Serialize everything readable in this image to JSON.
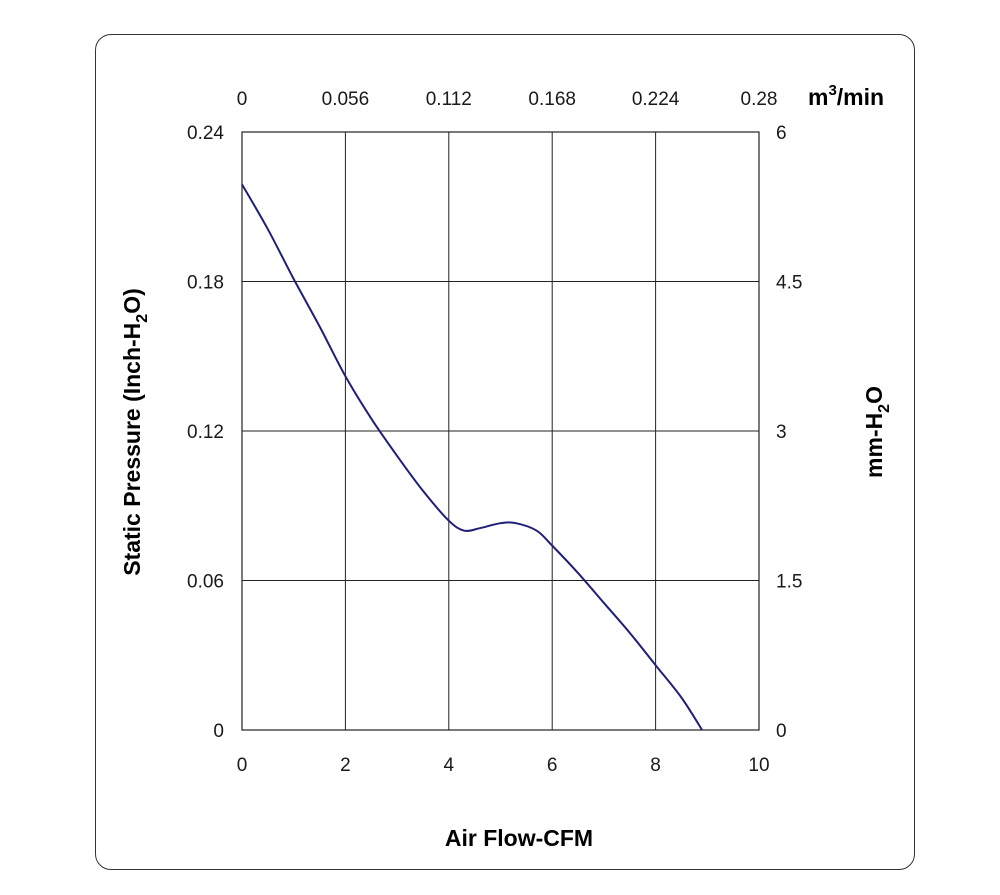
{
  "chart_data": {
    "type": "line",
    "title": "",
    "x_bottom": {
      "label": "Air Flow-CFM",
      "range": [
        0,
        10
      ],
      "ticks": [
        "0",
        "2",
        "4",
        "6",
        "8",
        "10"
      ]
    },
    "x_top": {
      "unit_label": "m3/min",
      "range": [
        0,
        0.28
      ],
      "ticks": [
        "0",
        "0.056",
        "0.112",
        "0.168",
        "0.224",
        "0.28"
      ]
    },
    "y_left": {
      "label": "Static Pressure (Inch-H2O)",
      "range": [
        0,
        0.24
      ],
      "ticks": [
        "0",
        "0.06",
        "0.12",
        "0.18",
        "0.24"
      ]
    },
    "y_right": {
      "label": "mm-H2O",
      "range": [
        0,
        6
      ],
      "ticks": [
        "0",
        "1.5",
        "3",
        "4.5",
        "6"
      ]
    },
    "grid": true,
    "line_color": "#1f1f7a",
    "series": [
      {
        "x": [
          0,
          0.5,
          1,
          1.5,
          2,
          2.5,
          3,
          3.5,
          4,
          4.3,
          4.6,
          5.0,
          5.3,
          5.7,
          6.0,
          6.5,
          7.0,
          7.5,
          8.0,
          8.5,
          8.9
        ],
        "y": [
          0.219,
          0.201,
          0.181,
          0.162,
          0.142,
          0.125,
          0.11,
          0.096,
          0.084,
          0.08,
          0.081,
          0.083,
          0.083,
          0.08,
          0.074,
          0.063,
          0.051,
          0.039,
          0.026,
          0.013,
          0.0
        ]
      }
    ]
  }
}
